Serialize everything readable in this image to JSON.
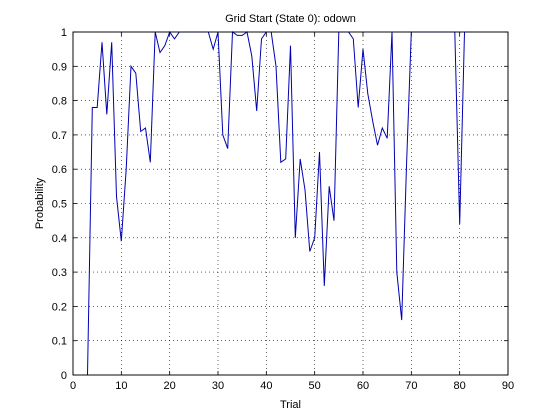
{
  "chart_data": {
    "type": "line",
    "title": "Grid Start (State 0): odown",
    "xlabel": "Trial",
    "ylabel": "Probability",
    "xlim": [
      0,
      90
    ],
    "ylim": [
      0,
      1
    ],
    "xticks": [
      0,
      10,
      20,
      30,
      40,
      50,
      60,
      70,
      80,
      90
    ],
    "yticks": [
      0,
      0.1,
      0.2,
      0.3,
      0.4,
      0.5,
      0.6,
      0.7,
      0.8,
      0.9,
      1
    ],
    "grid": true,
    "series": [
      {
        "color": "#0000b3",
        "x": [
          3,
          4,
          5,
          6,
          7,
          8,
          9,
          10,
          11,
          12,
          13,
          14,
          15,
          16,
          17,
          18,
          19,
          20,
          21,
          22,
          23,
          24,
          25,
          26,
          27,
          28,
          29,
          30,
          31,
          32,
          33,
          34,
          35,
          36,
          37,
          38,
          39,
          40,
          41,
          42,
          43,
          44,
          45,
          46,
          47,
          48,
          49,
          50,
          51,
          52,
          53,
          54,
          55,
          56,
          57,
          58,
          59,
          60,
          61,
          62,
          63,
          64,
          65,
          66,
          67,
          68,
          69,
          70,
          71,
          72,
          73,
          74,
          75,
          76,
          77,
          78,
          79,
          80,
          81,
          82
        ],
        "y": [
          0,
          0.78,
          0.78,
          0.97,
          0.76,
          0.97,
          0.52,
          0.39,
          0.6,
          0.9,
          0.88,
          0.71,
          0.72,
          0.62,
          1,
          0.94,
          0.96,
          1,
          0.98,
          1,
          1,
          1,
          1,
          1,
          1,
          1,
          0.95,
          1,
          0.7,
          0.66,
          1,
          0.99,
          0.99,
          1,
          0.93,
          0.77,
          0.98,
          1,
          1,
          0.9,
          0.62,
          0.63,
          0.96,
          0.4,
          0.63,
          0.54,
          0.36,
          0.4,
          0.65,
          0.26,
          0.55,
          0.45,
          1,
          1,
          1,
          0.98,
          0.78,
          0.95,
          0.82,
          0.74,
          0.67,
          0.72,
          0.69,
          1,
          0.3,
          0.16,
          0.61,
          1,
          1,
          1,
          1,
          1,
          1,
          1,
          1,
          1,
          1,
          0.44,
          1,
          1
        ]
      }
    ]
  }
}
